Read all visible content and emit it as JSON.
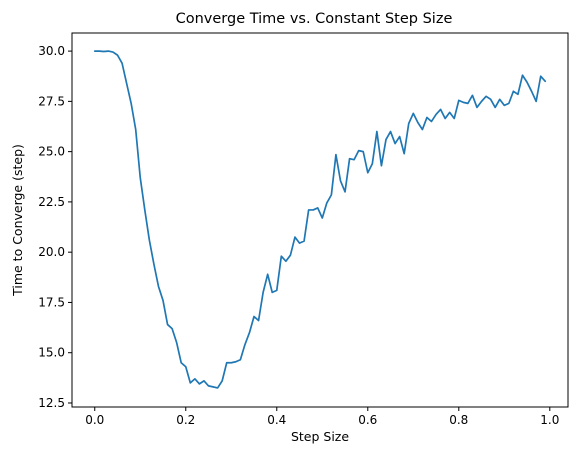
{
  "chart_data": {
    "type": "line",
    "title": "Converge Time vs. Constant Step Size",
    "xlabel": "Step Size",
    "ylabel": "Time to Converge (step)",
    "xlim": [
      -0.05,
      1.04
    ],
    "ylim": [
      12.3,
      30.9
    ],
    "xticks": [
      0.0,
      0.2,
      0.4,
      0.6,
      0.8,
      1.0
    ],
    "xtick_labels": [
      "0.0",
      "0.2",
      "0.4",
      "0.6",
      "0.8",
      "1.0"
    ],
    "yticks": [
      12.5,
      15.0,
      17.5,
      20.0,
      22.5,
      25.0,
      27.5,
      30.0
    ],
    "ytick_labels": [
      "12.5",
      "15.0",
      "17.5",
      "20.0",
      "22.5",
      "25.0",
      "27.5",
      "30.0"
    ],
    "grid": false,
    "color": "#1f77b4",
    "series": [
      {
        "x": [
          0.0,
          0.01,
          0.02,
          0.03,
          0.04,
          0.05,
          0.06,
          0.07,
          0.08,
          0.09,
          0.1,
          0.11,
          0.12,
          0.13,
          0.14,
          0.15,
          0.16,
          0.17,
          0.18,
          0.19,
          0.2,
          0.21,
          0.22,
          0.23,
          0.24,
          0.25,
          0.26,
          0.27,
          0.28,
          0.29,
          0.3,
          0.31,
          0.32,
          0.33,
          0.34,
          0.35,
          0.36,
          0.37,
          0.38,
          0.39,
          0.4,
          0.41,
          0.42,
          0.43,
          0.44,
          0.45,
          0.46,
          0.47,
          0.48,
          0.49,
          0.5,
          0.51,
          0.52,
          0.53,
          0.54,
          0.55,
          0.56,
          0.57,
          0.58,
          0.59,
          0.6,
          0.61,
          0.62,
          0.63,
          0.64,
          0.65,
          0.66,
          0.67,
          0.68,
          0.69,
          0.7,
          0.71,
          0.72,
          0.73,
          0.74,
          0.75,
          0.76,
          0.77,
          0.78,
          0.79,
          0.8,
          0.81,
          0.82,
          0.83,
          0.84,
          0.85,
          0.86,
          0.87,
          0.88,
          0.89,
          0.9,
          0.91,
          0.92,
          0.93,
          0.94,
          0.95,
          0.96,
          0.97,
          0.98,
          0.99
        ],
        "y": [
          30.0,
          30.0,
          29.98,
          30.0,
          29.95,
          29.8,
          29.4,
          28.4,
          27.4,
          26.1,
          23.7,
          22.1,
          20.6,
          19.4,
          18.3,
          17.6,
          16.4,
          16.2,
          15.5,
          14.5,
          14.3,
          13.5,
          13.7,
          13.45,
          13.6,
          13.35,
          13.3,
          13.25,
          13.6,
          14.5,
          14.5,
          14.55,
          14.65,
          15.4,
          16.0,
          16.8,
          16.6,
          18.0,
          18.9,
          18.0,
          18.1,
          19.8,
          19.55,
          19.85,
          20.75,
          20.45,
          20.55,
          22.1,
          22.1,
          22.2,
          21.7,
          22.45,
          22.85,
          24.85,
          23.55,
          23.0,
          24.65,
          24.6,
          25.05,
          25.0,
          23.95,
          24.4,
          26.0,
          24.3,
          25.6,
          26.0,
          25.4,
          25.75,
          24.9,
          26.4,
          26.9,
          26.45,
          26.1,
          26.7,
          26.5,
          26.85,
          27.1,
          26.65,
          26.95,
          26.65,
          27.55,
          27.45,
          27.4,
          27.8,
          27.2,
          27.5,
          27.75,
          27.6,
          27.2,
          27.6,
          27.3,
          27.4,
          28.0,
          27.85,
          28.8,
          28.45,
          28.0,
          27.5,
          28.75,
          28.5
        ]
      }
    ]
  }
}
